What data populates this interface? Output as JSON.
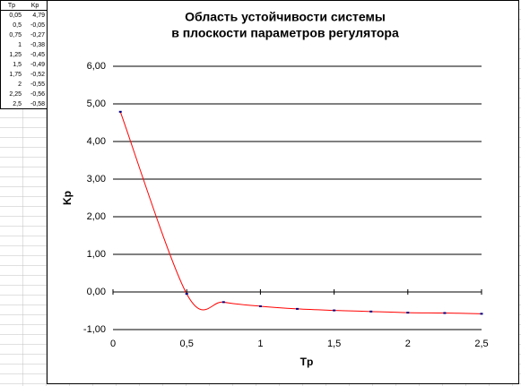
{
  "table": {
    "header": [
      "Tp",
      "Kp"
    ],
    "rows": [
      [
        "0,05",
        "4,79"
      ],
      [
        "0,5",
        "-0,05"
      ],
      [
        "0,75",
        "-0,27"
      ],
      [
        "1",
        "-0,38"
      ],
      [
        "1,25",
        "-0,45"
      ],
      [
        "1,5",
        "-0,49"
      ],
      [
        "1,75",
        "-0,52"
      ],
      [
        "2",
        "-0,55"
      ],
      [
        "2,25",
        "-0,56"
      ],
      [
        "2,5",
        "-0,58"
      ]
    ]
  },
  "chart_data": {
    "type": "line",
    "title": [
      "Область устойчивости системы",
      "в плоскости параметров регулятора"
    ],
    "x_label": "Tp",
    "y_label": "Kp",
    "x": [
      0.05,
      0.5,
      0.75,
      1,
      1.25,
      1.5,
      1.75,
      2,
      2.25,
      2.5
    ],
    "series": [
      {
        "name": "Kp",
        "color": "#ff0000",
        "values": [
          4.79,
          -0.05,
          -0.27,
          -0.38,
          -0.45,
          -0.49,
          -0.52,
          -0.55,
          -0.56,
          -0.58
        ]
      }
    ],
    "xlim": [
      0,
      2.5
    ],
    "xticks": [
      0,
      {
        "value": 0.5,
        "label": "0,5"
      },
      1,
      {
        "value": 1.5,
        "label": "1,5"
      },
      2,
      {
        "value": 2.5,
        "label": "2,5"
      }
    ],
    "ylim": [
      -1,
      6
    ],
    "yticks": [
      {
        "value": -1,
        "label": "-1,00"
      },
      {
        "value": 0,
        "label": "0,00"
      },
      {
        "value": 1,
        "label": "1,00"
      },
      {
        "value": 2,
        "label": "2,00"
      },
      {
        "value": 3,
        "label": "3,00"
      },
      {
        "value": 4,
        "label": "4,00"
      },
      {
        "value": 5,
        "label": "5,00"
      },
      {
        "value": 6,
        "label": "6,00"
      }
    ],
    "grid": true
  }
}
